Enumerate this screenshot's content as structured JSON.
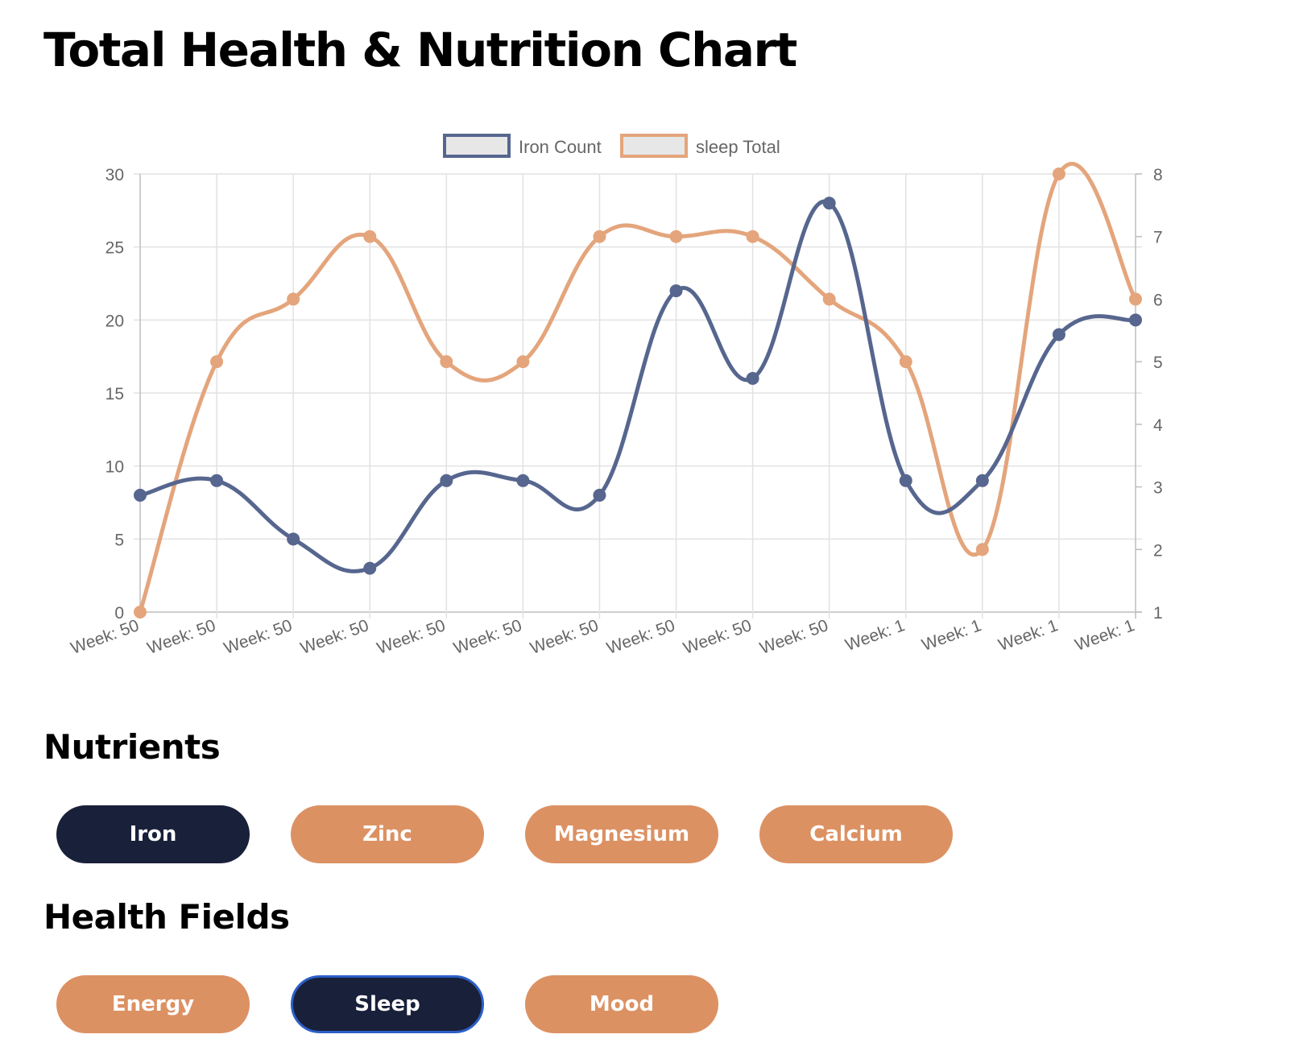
{
  "page": {
    "title": "Total Health & Nutrition Chart"
  },
  "sections": {
    "nutrients": {
      "title": "Nutrients"
    },
    "health_fields": {
      "title": "Health Fields"
    }
  },
  "nutrient_buttons": [
    {
      "label": "Iron",
      "state": "selected"
    },
    {
      "label": "Zinc",
      "state": "unselected"
    },
    {
      "label": "Magnesium",
      "state": "unselected"
    },
    {
      "label": "Calcium",
      "state": "unselected"
    }
  ],
  "health_buttons": [
    {
      "label": "Energy",
      "state": "unselected"
    },
    {
      "label": "Sleep",
      "state": "selected",
      "focused": true
    },
    {
      "label": "Mood",
      "state": "unselected"
    }
  ],
  "colors": {
    "selected_button": "#19203a",
    "unselected_button": "#dc9163",
    "focus_ring": "#2c5fc7",
    "iron_series": "#56668e",
    "sleep_series": "#e4a57c"
  },
  "chart_data": {
    "type": "line",
    "categories": [
      "Week: 50",
      "Week: 50",
      "Week: 50",
      "Week: 50",
      "Week: 50",
      "Week: 50",
      "Week: 50",
      "Week: 50",
      "Week: 50",
      "Week: 50",
      "Week: 1",
      "Week: 1",
      "Week: 1",
      "Week: 1"
    ],
    "series": [
      {
        "name": "Iron Count",
        "axis": "left",
        "color": "#56668e",
        "values": [
          8,
          9,
          5,
          3,
          9,
          9,
          8,
          22,
          16,
          28,
          9,
          9,
          19,
          20
        ]
      },
      {
        "name": "sleep Total",
        "axis": "right",
        "color": "#e4a57c",
        "values": [
          1,
          5,
          6,
          7,
          5,
          5,
          7,
          7,
          7,
          6,
          5,
          2,
          8,
          6
        ]
      }
    ],
    "y_left": {
      "min": 0,
      "max": 30,
      "ticks": [
        "0",
        "5",
        "10",
        "15",
        "20",
        "25",
        "30"
      ]
    },
    "y_right": {
      "min": 1,
      "max": 8,
      "ticks": [
        "1",
        "2",
        "3",
        "4",
        "5",
        "6",
        "7",
        "8"
      ]
    },
    "smooth": true,
    "grid": true,
    "legend": "top-center"
  }
}
